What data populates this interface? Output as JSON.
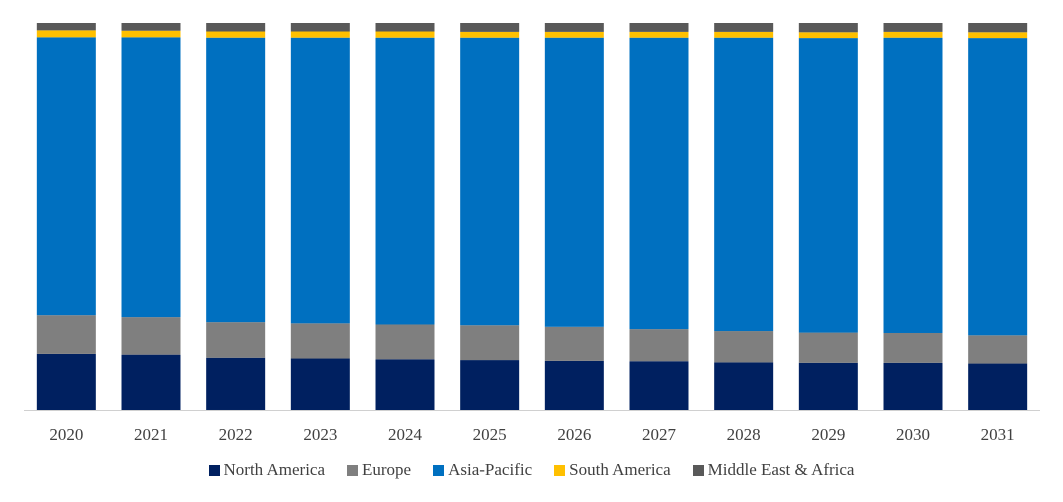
{
  "chart_data": {
    "type": "bar",
    "stacked": true,
    "normalized": true,
    "categories": [
      "2020",
      "2021",
      "2022",
      "2023",
      "2024",
      "2025",
      "2026",
      "2027",
      "2028",
      "2029",
      "2030",
      "2031"
    ],
    "series": [
      {
        "name": "North America",
        "color": "#002060",
        "values": [
          14.5,
          14.3,
          13.5,
          13.3,
          13.1,
          12.9,
          12.7,
          12.6,
          12.3,
          12.2,
          12.2,
          12.0
        ]
      },
      {
        "name": "Europe",
        "color": "#7F7F7F",
        "values": [
          10.0,
          9.7,
          9.2,
          9.1,
          9.0,
          9.0,
          8.8,
          8.3,
          8.1,
          7.8,
          7.7,
          7.3
        ]
      },
      {
        "name": "Asia-Pacific",
        "color": "#0070C0",
        "values": [
          71.8,
          72.3,
          73.5,
          73.8,
          74.1,
          74.3,
          74.7,
          75.3,
          75.8,
          76.1,
          76.3,
          76.8
        ]
      },
      {
        "name": "South America",
        "color": "#FFC000",
        "values": [
          1.8,
          1.7,
          1.6,
          1.6,
          1.6,
          1.5,
          1.5,
          1.5,
          1.5,
          1.5,
          1.5,
          1.5
        ]
      },
      {
        "name": "Middle East & Africa",
        "color": "#595959",
        "values": [
          1.9,
          2.0,
          2.2,
          2.2,
          2.2,
          2.3,
          2.3,
          2.3,
          2.3,
          2.4,
          2.3,
          2.4
        ]
      }
    ],
    "ylim": [
      0,
      100
    ],
    "title": "",
    "xlabel": "",
    "ylabel": "",
    "legend_position": "bottom"
  }
}
